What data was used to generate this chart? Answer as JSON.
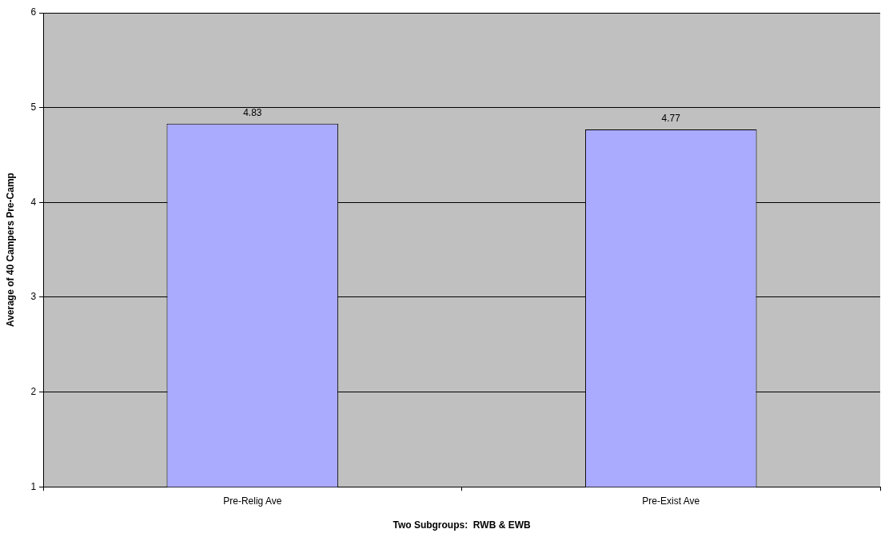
{
  "chart_data": {
    "type": "bar",
    "xlabel": "Two Subgroups:  RWB & EWB",
    "ylabel": "Average of 40 Campers Pre-Camp",
    "categories": [
      "Pre-Relig Ave",
      "Pre-Exist Ave"
    ],
    "values": [
      4.83,
      4.77
    ],
    "color": "#aaaaff",
    "ylim": [
      1,
      6
    ],
    "yticks": [
      1,
      2,
      3,
      4,
      5,
      6
    ],
    "grid": "y",
    "data_labels": true,
    "legend": false
  }
}
